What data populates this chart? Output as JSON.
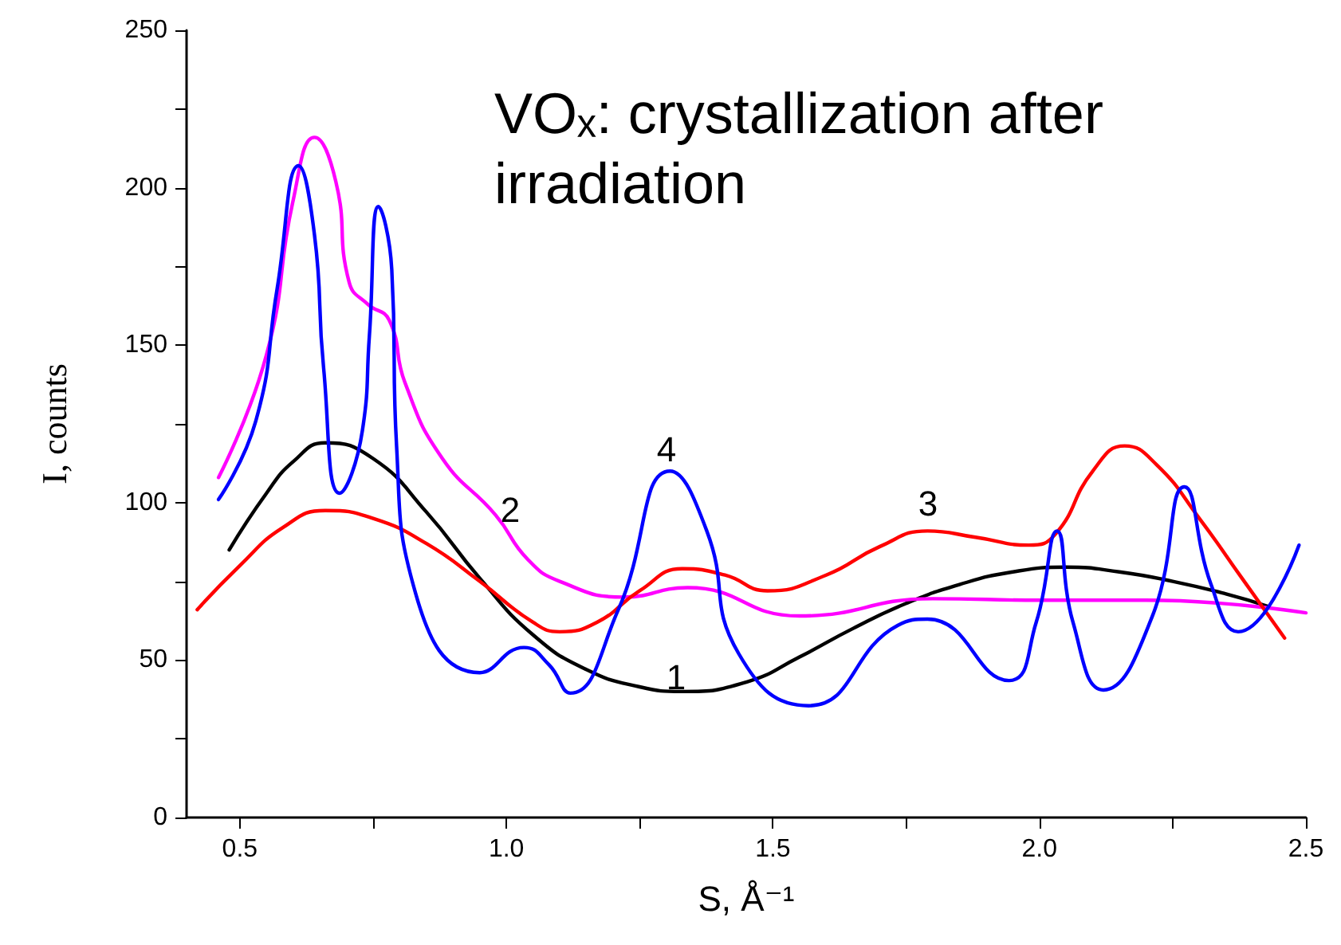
{
  "chart_data": {
    "type": "line",
    "title": "VOₓ: crystallization after irradiation",
    "xlabel": "S, Å⁻¹",
    "ylabel": "I, counts",
    "xlim": [
      0.4,
      2.5
    ],
    "ylim": [
      0,
      250
    ],
    "xticks": [
      {
        "value": 0.5,
        "label": "0.5"
      },
      {
        "value": 0.75,
        "label": null
      },
      {
        "value": 1.0,
        "label": "1.0"
      },
      {
        "value": 1.25,
        "label": null
      },
      {
        "value": 1.5,
        "label": "1.5"
      },
      {
        "value": 1.75,
        "label": null
      },
      {
        "value": 2.0,
        "label": "2.0"
      },
      {
        "value": 2.25,
        "label": null
      },
      {
        "value": 2.5,
        "label": "2.5"
      }
    ],
    "yticks": [
      0,
      {
        "value": 25,
        "label": null
      },
      50,
      {
        "value": 75,
        "label": null
      },
      100,
      {
        "value": 125,
        "label": null
      },
      150,
      {
        "value": 175,
        "label": null
      },
      200,
      {
        "value": 225,
        "label": null
      },
      250
    ],
    "grid": false,
    "legend": false,
    "marker": "none",
    "line_style": "solid",
    "series": [
      {
        "name": "1",
        "color": "#000000",
        "x": [
          0.48,
          0.55,
          0.6,
          0.66,
          0.75,
          0.85,
          0.95,
          1.05,
          1.15,
          1.25,
          1.33,
          1.45,
          1.55,
          1.65,
          1.75,
          1.85,
          1.95,
          2.05,
          2.15,
          2.25,
          2.35,
          2.43
        ],
        "values": [
          85,
          103,
          113,
          119,
          114,
          97,
          76,
          58,
          47,
          41.5,
          40,
          43,
          51,
          60,
          68,
          74,
          78,
          79.5,
          78,
          75,
          71,
          67
        ]
      },
      {
        "name": "2",
        "color": "#ff00ff",
        "x": [
          0.46,
          0.55,
          0.6,
          0.64,
          0.68,
          0.705,
          0.74,
          0.78,
          0.81,
          0.88,
          0.98,
          1.04,
          1.1,
          1.22,
          1.34,
          1.55,
          1.8,
          2.0,
          2.2,
          2.5
        ],
        "values": [
          108,
          147,
          196,
          216,
          202,
          170,
          163,
          158,
          138,
          114,
          96,
          82,
          75,
          70,
          73,
          64,
          69.5,
          69,
          69,
          65
        ]
      },
      {
        "name": "3",
        "color": "#ff0000",
        "x": [
          0.42,
          0.5,
          0.58,
          0.66,
          0.75,
          0.85,
          0.95,
          1.05,
          1.1,
          1.17,
          1.25,
          1.33,
          1.41,
          1.49,
          1.6,
          1.7,
          1.79,
          1.88,
          1.98,
          2.03,
          2.1,
          2.16,
          2.22,
          2.3,
          2.38,
          2.46
        ],
        "values": [
          66,
          80,
          92,
          97.5,
          95,
          87,
          75,
          62,
          59,
          62,
          72,
          79,
          77,
          72,
          77,
          86,
          91,
          89,
          86.5,
          90,
          110,
          118,
          112,
          95,
          76,
          57
        ]
      },
      {
        "name": "4",
        "color": "#0000ff",
        "x": [
          0.46,
          0.53,
          0.57,
          0.61,
          0.64,
          0.657,
          0.687,
          0.73,
          0.743,
          0.76,
          0.785,
          0.794,
          0.83,
          0.95,
          1.033,
          1.08,
          1.12,
          1.21,
          1.307,
          1.376,
          1.436,
          1.567,
          1.734,
          1.79,
          1.943,
          1.994,
          2.033,
          2.063,
          2.12,
          2.212,
          2.272,
          2.322,
          2.373,
          2.487
        ],
        "values": [
          101,
          126,
          168,
          207,
          185,
          143,
          103,
          123,
          153,
          194,
          174,
          118,
          71,
          46,
          54,
          48.5,
          39.5,
          66,
          110,
          91,
          52,
          35.5,
          61,
          63,
          43.5,
          62,
          91,
          62,
          40.5,
          64,
          105,
          74,
          59,
          86.5
        ]
      }
    ]
  }
}
